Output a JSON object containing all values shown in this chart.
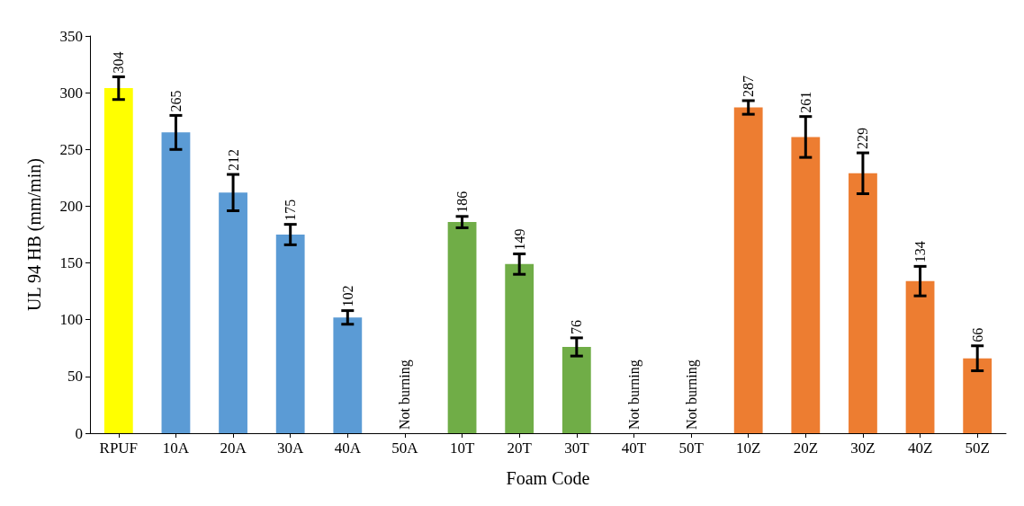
{
  "chart_data": {
    "type": "bar",
    "xlabel": "Foam Code",
    "ylabel": "UL 94 HB (mm/min)",
    "categories": [
      "RPUF",
      "10A",
      "20A",
      "30A",
      "40A",
      "50A",
      "10T",
      "20T",
      "30T",
      "40T",
      "50T",
      "10Z",
      "20Z",
      "30Z",
      "40Z",
      "50Z"
    ],
    "values": [
      304,
      265,
      212,
      175,
      102,
      0,
      186,
      149,
      76,
      0,
      0,
      287,
      261,
      229,
      134,
      66
    ],
    "errors": [
      10,
      15,
      16,
      9,
      6,
      null,
      5,
      9,
      8,
      null,
      null,
      6,
      18,
      18,
      13,
      11
    ],
    "colors": [
      "#ffff00",
      "#5b9bd5",
      "#5b9bd5",
      "#5b9bd5",
      "#5b9bd5",
      "#5b9bd5",
      "#70ad47",
      "#70ad47",
      "#70ad47",
      "#70ad47",
      "#70ad47",
      "#ed7d31",
      "#ed7d31",
      "#ed7d31",
      "#ed7d31",
      "#ed7d31"
    ],
    "value_labels": [
      "304",
      "265",
      "212",
      "175",
      "102",
      "Not burning",
      "186",
      "149",
      "76",
      "Not burning",
      "Not burning",
      "287",
      "261",
      "229",
      "134",
      "66"
    ],
    "ylim": [
      0,
      350
    ],
    "yticks": [
      0,
      50,
      100,
      150,
      200,
      250,
      300,
      350
    ],
    "grid": false
  }
}
